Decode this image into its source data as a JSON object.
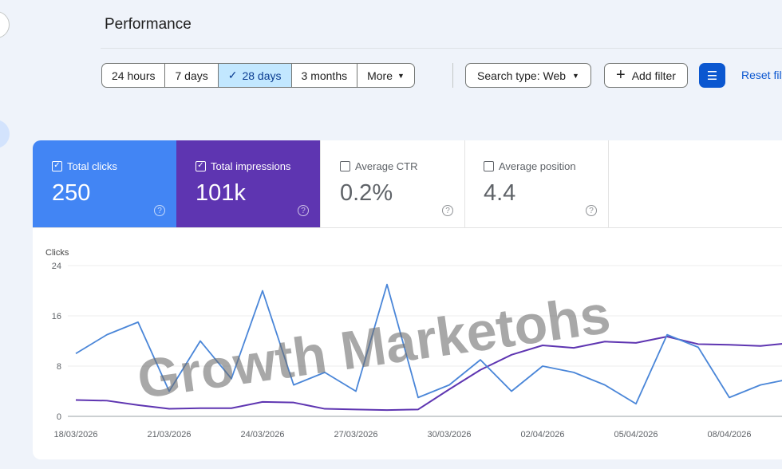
{
  "header": {
    "title": "Performance"
  },
  "date_range": {
    "options": [
      "24 hours",
      "7 days",
      "28 days",
      "3 months",
      "More"
    ],
    "selected": "28 days"
  },
  "search_type": "Search type: Web",
  "add_filter": "Add filter",
  "reset_filters": "Reset filters",
  "metrics": [
    {
      "label": "Total clicks",
      "value": "250",
      "checked": true,
      "color": "#4285f4"
    },
    {
      "label": "Total impressions",
      "value": "101k",
      "checked": true,
      "color": "#5e35b1"
    },
    {
      "label": "Average CTR",
      "value": "0.2%",
      "checked": false
    },
    {
      "label": "Average position",
      "value": "4.4",
      "checked": false
    }
  ],
  "watermark": "Growth Marketohs",
  "chart_data": {
    "type": "line",
    "ylabel": "Clicks",
    "ylim": [
      0,
      24
    ],
    "yticks": [
      "0",
      "8",
      "16",
      "24"
    ],
    "x": [
      "18/03/2026",
      "19/03/2026",
      "20/03/2026",
      "21/03/2026",
      "22/03/2026",
      "23/03/2026",
      "24/03/2026",
      "25/03/2026",
      "26/03/2026",
      "27/03/2026",
      "28/03/2026",
      "29/03/2026",
      "30/03/2026",
      "31/03/2026",
      "01/04/2026",
      "02/04/2026",
      "03/04/2026",
      "04/04/2026",
      "05/04/2026",
      "06/04/2026",
      "07/04/2026",
      "08/04/2026",
      "09/04/2026",
      "10/04/2026"
    ],
    "xticks": [
      "18/03/2026",
      "21/03/2026",
      "24/03/2026",
      "27/03/2026",
      "30/03/2026",
      "02/04/2026",
      "05/04/2026",
      "08/04/2026"
    ],
    "series": [
      {
        "name": "Clicks",
        "color": "#4a86d8",
        "values": [
          10,
          13,
          15,
          4,
          12,
          6,
          20,
          5,
          7,
          4,
          21,
          3,
          5,
          9,
          4,
          8,
          7,
          5,
          2,
          13,
          11,
          3,
          5,
          6
        ]
      },
      {
        "name": "Impressions (scaled to clicks axis)",
        "color": "#5e35b1",
        "values": [
          2.6,
          2.5,
          1.8,
          1.2,
          1.3,
          1.3,
          2.3,
          2.2,
          1.2,
          1.1,
          1.0,
          1.1,
          4.3,
          7.4,
          9.8,
          11.3,
          10.9,
          11.9,
          11.7,
          12.7,
          11.5,
          11.4,
          11.2,
          11.7
        ]
      }
    ]
  }
}
